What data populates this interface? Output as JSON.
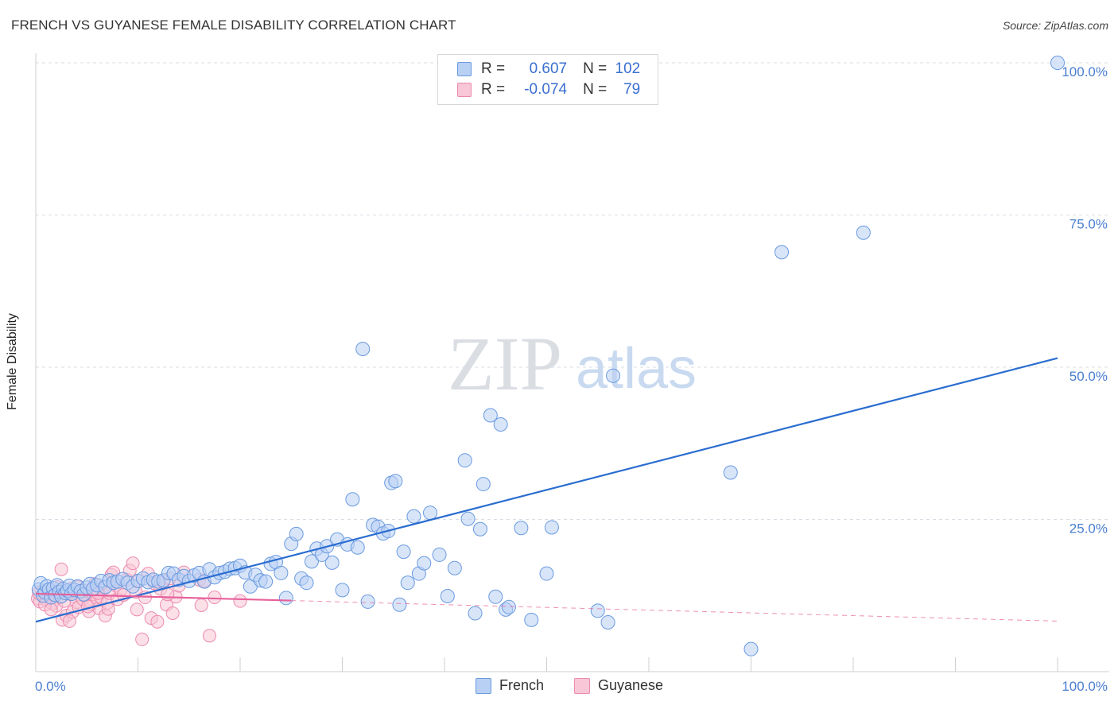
{
  "header": {
    "title": "FRENCH VS GUYANESE FEMALE DISABILITY CORRELATION CHART",
    "source": "Source: ZipAtlas.com"
  },
  "watermark": {
    "zip": "ZIP",
    "atlas": "atlas"
  },
  "legend": {
    "rows": [
      {
        "r_label": "R =",
        "r_value": "0.607",
        "n_label": "N =",
        "n_value": "102",
        "color": "#6a9ae0",
        "fill": "#b8d0f4"
      },
      {
        "r_label": "R =",
        "r_value": "-0.074",
        "n_label": "N =",
        "n_value": "79",
        "color": "#ec8ab0",
        "fill": "#f8c6d6"
      }
    ]
  },
  "colors": {
    "french_stroke": "#6a9ae0",
    "french_fill": "#b8d0f4",
    "french_line": "#2a6dd0",
    "guyanese_stroke": "#ec8ab0",
    "guyanese_fill": "#f8c6d6",
    "guyanese_line": "#e8609a",
    "tick_text": "#4a7fd0",
    "grid": "#d8dde6"
  },
  "chart_data": {
    "type": "scatter",
    "title": "FRENCH VS GUYANESE FEMALE DISABILITY CORRELATION CHART",
    "xlabel": "",
    "ylabel": "Female Disability",
    "xlim": [
      0,
      100
    ],
    "ylim": [
      0,
      102
    ],
    "x_tick_labels": [
      "0.0%",
      "100.0%"
    ],
    "y_ticks": [
      25,
      50,
      75,
      100
    ],
    "y_tick_labels": [
      "25.0%",
      "50.0%",
      "75.0%",
      "100.0%"
    ],
    "grid": true,
    "legend_position": "bottom-center",
    "series": [
      {
        "name": "French",
        "r": 0.607,
        "n": 102,
        "trend": {
          "x": [
            0,
            100
          ],
          "y": [
            8.2,
            51.5
          ],
          "dashed_from": null
        },
        "points": [
          [
            0.3,
            13.5
          ],
          [
            0.5,
            14.5
          ],
          [
            0.7,
            12.5
          ],
          [
            0.9,
            13
          ],
          [
            1.1,
            14
          ],
          [
            1.3,
            13.5
          ],
          [
            1.5,
            12.2
          ],
          [
            1.7,
            13.7
          ],
          [
            1.9,
            12.6
          ],
          [
            2.1,
            14.2
          ],
          [
            2.3,
            13.1
          ],
          [
            2.5,
            12.4
          ],
          [
            2.7,
            13.6
          ],
          [
            2.9,
            12.9
          ],
          [
            3.1,
            13.3
          ],
          [
            3.3,
            14.1
          ],
          [
            3.5,
            12.8
          ],
          [
            3.8,
            13.4
          ],
          [
            4.1,
            14
          ],
          [
            4.4,
            13.2
          ],
          [
            4.7,
            12.7
          ],
          [
            5,
            13.8
          ],
          [
            5.3,
            14.4
          ],
          [
            5.6,
            13.6
          ],
          [
            6,
            14.2
          ],
          [
            6.4,
            14.9
          ],
          [
            6.8,
            13.9
          ],
          [
            7.2,
            15
          ],
          [
            7.6,
            14.6
          ],
          [
            8,
            14.8
          ],
          [
            8.5,
            15.2
          ],
          [
            9,
            14.6
          ],
          [
            9.5,
            14
          ],
          [
            10,
            14.9
          ],
          [
            10.5,
            15.3
          ],
          [
            11,
            14.7
          ],
          [
            11.5,
            15.1
          ],
          [
            12,
            14.8
          ],
          [
            12.5,
            15
          ],
          [
            13,
            16.2
          ],
          [
            13.5,
            16.1
          ],
          [
            14,
            15.1
          ],
          [
            14.5,
            15.7
          ],
          [
            15,
            14.9
          ],
          [
            15.5,
            15.8
          ],
          [
            16,
            16.2
          ],
          [
            16.5,
            14.8
          ],
          [
            17,
            16.8
          ],
          [
            17.5,
            15.5
          ],
          [
            18,
            16.2
          ],
          [
            18.5,
            16.4
          ],
          [
            19,
            16.9
          ],
          [
            19.5,
            17
          ],
          [
            20,
            17.4
          ],
          [
            20.5,
            16.3
          ],
          [
            21,
            14
          ],
          [
            21.5,
            15.9
          ],
          [
            22,
            15
          ],
          [
            22.5,
            14.8
          ],
          [
            23,
            17.7
          ],
          [
            23.5,
            18
          ],
          [
            24,
            16.2
          ],
          [
            24.5,
            12.1
          ],
          [
            25,
            21
          ],
          [
            25.5,
            22.6
          ],
          [
            26,
            15.3
          ],
          [
            26.5,
            14.6
          ],
          [
            27,
            18.1
          ],
          [
            27.5,
            20.2
          ],
          [
            28,
            19.2
          ],
          [
            28.5,
            20.6
          ],
          [
            29,
            17.9
          ],
          [
            29.5,
            21.7
          ],
          [
            30,
            13.4
          ],
          [
            30.5,
            20.9
          ],
          [
            31,
            28.3
          ],
          [
            31.5,
            20.4
          ],
          [
            32,
            53
          ],
          [
            32.5,
            11.5
          ],
          [
            33,
            24.1
          ],
          [
            33.5,
            23.8
          ],
          [
            34,
            22.7
          ],
          [
            34.5,
            23.1
          ],
          [
            34.8,
            31
          ],
          [
            35.2,
            31.3
          ],
          [
            35.6,
            11
          ],
          [
            36,
            19.7
          ],
          [
            36.4,
            14.6
          ],
          [
            37,
            25.5
          ],
          [
            37.5,
            16.1
          ],
          [
            38,
            17.8
          ],
          [
            38.6,
            26.1
          ],
          [
            39.5,
            19.2
          ],
          [
            40.3,
            12.4
          ],
          [
            41,
            17
          ],
          [
            42,
            34.7
          ],
          [
            42.3,
            25.1
          ],
          [
            43,
            9.6
          ],
          [
            43.5,
            23.4
          ],
          [
            43.8,
            30.8
          ],
          [
            44.5,
            42.1
          ],
          [
            45,
            12.3
          ],
          [
            45.5,
            40.6
          ],
          [
            46,
            10.2
          ],
          [
            46.3,
            10.6
          ],
          [
            47.5,
            23.6
          ],
          [
            48.5,
            8.5
          ],
          [
            50,
            16.1
          ],
          [
            50.5,
            23.7
          ],
          [
            55,
            10
          ],
          [
            56.5,
            48.6
          ],
          [
            56,
            8.1
          ],
          [
            68,
            32.7
          ],
          [
            70,
            3.7
          ],
          [
            73,
            68.9
          ],
          [
            81,
            72.1
          ],
          [
            100,
            100
          ]
        ]
      },
      {
        "name": "Guyanese",
        "r": -0.074,
        "n": 79,
        "trend": {
          "x": [
            0,
            100
          ],
          "y": [
            12.8,
            8.3
          ],
          "dashed_from": 25
        },
        "points": [
          [
            0.2,
            12
          ],
          [
            0.4,
            11.5
          ],
          [
            0.6,
            13.2
          ],
          [
            0.8,
            12.4
          ],
          [
            1,
            11.8
          ],
          [
            1.2,
            12.9
          ],
          [
            1.4,
            13.5
          ],
          [
            1.6,
            11.2
          ],
          [
            1.8,
            12.6
          ],
          [
            2,
            10.8
          ],
          [
            2.2,
            13.1
          ],
          [
            2.4,
            12.2
          ],
          [
            2.6,
            8.5
          ],
          [
            2.8,
            11.6
          ],
          [
            3,
            9.2
          ],
          [
            3.2,
            12.8
          ],
          [
            3.4,
            13.6
          ],
          [
            3.6,
            9.8
          ],
          [
            3.8,
            12.3
          ],
          [
            4,
            11.4
          ],
          [
            4.2,
            10.6
          ],
          [
            4.4,
            13
          ],
          [
            4.6,
            11.9
          ],
          [
            4.8,
            12.5
          ],
          [
            5,
            13.3
          ],
          [
            5.2,
            9.9
          ],
          [
            5.4,
            11.1
          ],
          [
            5.6,
            12.7
          ],
          [
            5.8,
            14.4
          ],
          [
            6,
            11.7
          ],
          [
            6.2,
            10.4
          ],
          [
            6.4,
            12.1
          ],
          [
            6.6,
            13.8
          ],
          [
            6.8,
            9.2
          ],
          [
            7,
            11.3
          ],
          [
            7.2,
            12.9
          ],
          [
            7.4,
            15.9
          ],
          [
            7.6,
            16.3
          ],
          [
            7.8,
            14.2
          ],
          [
            8,
            11.9
          ],
          [
            8.3,
            13.4
          ],
          [
            8.6,
            12.6
          ],
          [
            8.9,
            15.1
          ],
          [
            9.2,
            16.6
          ],
          [
            9.5,
            17.8
          ],
          [
            9.8,
            13.1
          ],
          [
            10.1,
            14.9
          ],
          [
            10.4,
            5.3
          ],
          [
            10.7,
            12.2
          ],
          [
            11,
            16.1
          ],
          [
            11.3,
            8.8
          ],
          [
            11.6,
            14.5
          ],
          [
            11.9,
            8.2
          ],
          [
            12.2,
            13.6
          ],
          [
            12.5,
            14.7
          ],
          [
            12.8,
            11
          ],
          [
            13.1,
            15.3
          ],
          [
            13.4,
            9.6
          ],
          [
            13.7,
            12.3
          ],
          [
            14,
            14.1
          ],
          [
            2.5,
            16.8
          ],
          [
            0.3,
            12.9
          ],
          [
            0.9,
            11
          ],
          [
            1.5,
            10.2
          ],
          [
            2.1,
            13.9
          ],
          [
            3.3,
            8.3
          ],
          [
            4.1,
            13.9
          ],
          [
            5.1,
            10.7
          ],
          [
            6.1,
            12.9
          ],
          [
            7.1,
            10.3
          ],
          [
            9.9,
            10.2
          ],
          [
            12.9,
            12.7
          ],
          [
            14.5,
            16.3
          ],
          [
            16,
            15.1
          ],
          [
            16.2,
            10.9
          ],
          [
            16.5,
            14.9
          ],
          [
            17.5,
            12.2
          ],
          [
            17,
            5.9
          ],
          [
            20,
            11.6
          ]
        ]
      }
    ]
  },
  "bottom_legend": {
    "items": [
      {
        "label": "French"
      },
      {
        "label": "Guyanese"
      }
    ]
  }
}
